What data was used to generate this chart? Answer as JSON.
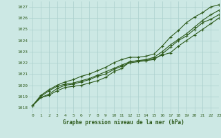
{
  "title": "Graphe pression niveau de la mer (hPa)",
  "xlim": [
    -0.5,
    23
  ],
  "ylim": [
    1017.5,
    1027.5
  ],
  "yticks": [
    1018,
    1019,
    1020,
    1021,
    1022,
    1023,
    1024,
    1025,
    1026,
    1027
  ],
  "xticks": [
    0,
    1,
    2,
    3,
    4,
    5,
    6,
    7,
    8,
    9,
    10,
    11,
    12,
    13,
    14,
    15,
    16,
    17,
    18,
    19,
    20,
    21,
    22,
    23
  ],
  "bg_color": "#cce8e4",
  "grid_color": "#aacfcc",
  "line_color": "#2d5a1b",
  "line_width": 0.8,
  "marker": "+",
  "marker_size": 3,
  "series": [
    [
      1018.2,
      1018.9,
      1019.1,
      1019.5,
      1019.8,
      1019.9,
      1020.0,
      1020.2,
      1020.4,
      1020.7,
      1021.2,
      1021.5,
      1022.1,
      1022.2,
      1022.2,
      1022.4,
      1022.7,
      1022.9,
      1023.5,
      1024.0,
      1024.5,
      1025.0,
      1025.5,
      1026.0
    ],
    [
      1018.2,
      1018.9,
      1019.2,
      1019.7,
      1020.0,
      1020.1,
      1020.3,
      1020.5,
      1020.8,
      1021.0,
      1021.4,
      1021.7,
      1022.0,
      1022.1,
      1022.2,
      1022.3,
      1022.8,
      1023.4,
      1024.0,
      1024.4,
      1025.0,
      1025.6,
      1025.9,
      1026.3
    ],
    [
      1018.2,
      1019.0,
      1019.5,
      1019.9,
      1020.1,
      1020.2,
      1020.4,
      1020.6,
      1020.9,
      1021.2,
      1021.5,
      1021.8,
      1022.1,
      1022.2,
      1022.3,
      1022.5,
      1023.0,
      1023.6,
      1024.1,
      1024.6,
      1025.2,
      1025.8,
      1026.3,
      1026.7
    ],
    [
      1018.2,
      1019.1,
      1019.6,
      1020.0,
      1020.3,
      1020.5,
      1020.8,
      1021.0,
      1021.3,
      1021.6,
      1022.0,
      1022.3,
      1022.5,
      1022.5,
      1022.6,
      1022.8,
      1023.5,
      1024.3,
      1024.9,
      1025.6,
      1026.1,
      1026.5,
      1027.0,
      1027.2
    ]
  ]
}
